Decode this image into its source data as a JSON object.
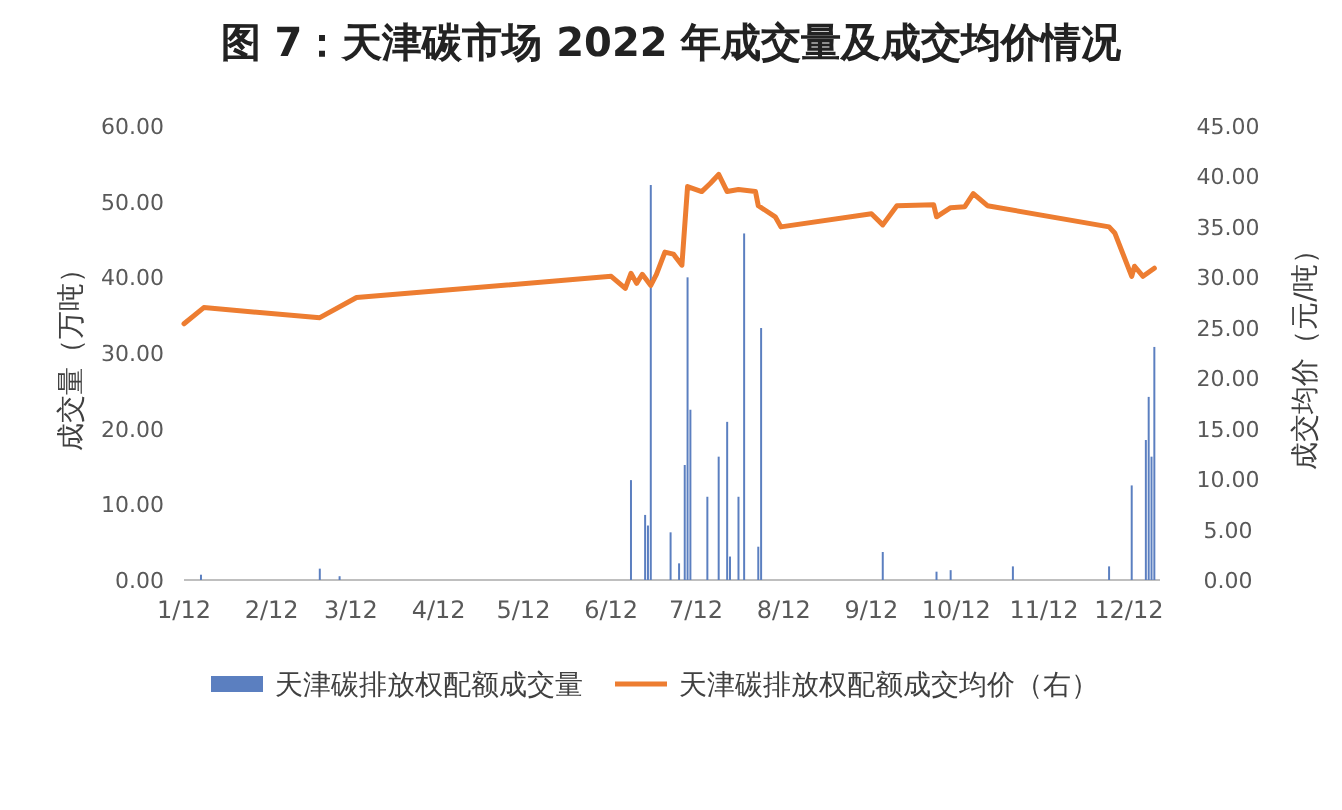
{
  "chart_data": {
    "type": "bar",
    "title": "图 7：天津碳市场 2022 年成交量及成交均价情况",
    "ylabel": "成交量（万吨）",
    "y2label": "成交均价（元/吨）",
    "xlim": [
      "--01-12",
      "--12-23"
    ],
    "xticks": [
      {
        "value": "--01-12",
        "label": "1/12"
      },
      {
        "value": "--02-12",
        "label": "2/12"
      },
      {
        "value": "--03-12",
        "label": "3/12"
      },
      {
        "value": "--04-12",
        "label": "4/12"
      },
      {
        "value": "--05-12",
        "label": "5/12"
      },
      {
        "value": "--06-12",
        "label": "6/12"
      },
      {
        "value": "--07-12",
        "label": "7/12"
      },
      {
        "value": "--08-12",
        "label": "8/12"
      },
      {
        "value": "--09-12",
        "label": "9/12"
      },
      {
        "value": "--10-12",
        "label": "10/12"
      },
      {
        "value": "--11-12",
        "label": "11/12"
      },
      {
        "value": "--12-12",
        "label": "12/12"
      }
    ],
    "ylim": [
      0,
      60
    ],
    "yticks": [
      {
        "value": 0,
        "label": "0.00"
      },
      {
        "value": 10,
        "label": "10.00"
      },
      {
        "value": 20,
        "label": "20.00"
      },
      {
        "value": 30,
        "label": "30.00"
      },
      {
        "value": 40,
        "label": "40.00"
      },
      {
        "value": 50,
        "label": "50.00"
      },
      {
        "value": 60,
        "label": "60.00"
      }
    ],
    "y2lim": [
      0,
      45
    ],
    "y2ticks": [
      {
        "value": 0,
        "label": "0.00"
      },
      {
        "value": 5,
        "label": "5.00"
      },
      {
        "value": 10,
        "label": "10.00"
      },
      {
        "value": 15,
        "label": "15.00"
      },
      {
        "value": 20,
        "label": "20.00"
      },
      {
        "value": 25,
        "label": "25.00"
      },
      {
        "value": 30,
        "label": "30.00"
      },
      {
        "value": 35,
        "label": "35.00"
      },
      {
        "value": 40,
        "label": "40.00"
      },
      {
        "value": 45,
        "label": "45.00"
      }
    ],
    "grid": false,
    "legend": "bottom",
    "series": [
      {
        "name": "天津碳排放权配额成交量",
        "color": "#5b7fc0",
        "x": [
          "--01-18",
          "--03-01",
          "--03-08",
          "--06-19",
          "--06-24",
          "--06-25",
          "--06-26",
          "--07-03",
          "--07-06",
          "--07-08",
          "--07-09",
          "--07-10",
          "--07-16",
          "--07-20",
          "--07-23",
          "--07-24",
          "--07-27",
          "--07-29",
          "--08-03",
          "--08-04",
          "--09-16",
          "--10-05",
          "--10-10",
          "--11-01",
          "--12-05",
          "--12-13",
          "--12-18",
          "--12-19",
          "--12-20",
          "--12-21"
        ],
        "values": [
          0.7,
          1.5,
          0.5,
          13.2,
          8.6,
          7.2,
          52.2,
          6.3,
          2.2,
          15.2,
          40,
          22.5,
          11.0,
          16.3,
          20.9,
          3.1,
          11.0,
          45.8,
          4.4,
          33.3,
          3.7,
          1.1,
          1.3,
          1.8,
          1.8,
          12.5,
          18.5,
          24.2,
          16.3,
          30.8
        ]
      },
      {
        "name": "天津碳排放权配额成交均价（右）",
        "type": "line",
        "axis": "y2",
        "color": "#ed7d31",
        "x": [
          "--01-12",
          "--01-19",
          "--03-01",
          "--03-14",
          "--06-12",
          "--06-17",
          "--06-19",
          "--06-21",
          "--06-23",
          "--06-26",
          "--06-28",
          "--07-01",
          "--07-04",
          "--07-07",
          "--07-09",
          "--07-14",
          "--07-17",
          "--07-20",
          "--07-23",
          "--07-27",
          "--08-02",
          "--08-03",
          "--08-09",
          "--08-11",
          "--09-12",
          "--09-16",
          "--09-21",
          "--10-04",
          "--10-05",
          "--10-10",
          "--10-15",
          "--10-18",
          "--10-23",
          "--12-05",
          "--12-07",
          "--12-13",
          "--12-14",
          "--12-17",
          "--12-19",
          "--12-21"
        ],
        "values": [
          25.4,
          27.0,
          26.0,
          28.0,
          30.1,
          28.9,
          30.4,
          29.4,
          30.3,
          29.2,
          30.3,
          32.5,
          32.3,
          31.2,
          39.0,
          38.5,
          39.3,
          40.2,
          38.5,
          38.7,
          38.5,
          37.1,
          36.0,
          35.0,
          36.3,
          35.2,
          37.1,
          37.2,
          36.0,
          36.9,
          37.0,
          38.3,
          37.1,
          35.0,
          34.4,
          30.1,
          31.1,
          30.1,
          30.5,
          30.9
        ]
      }
    ]
  }
}
